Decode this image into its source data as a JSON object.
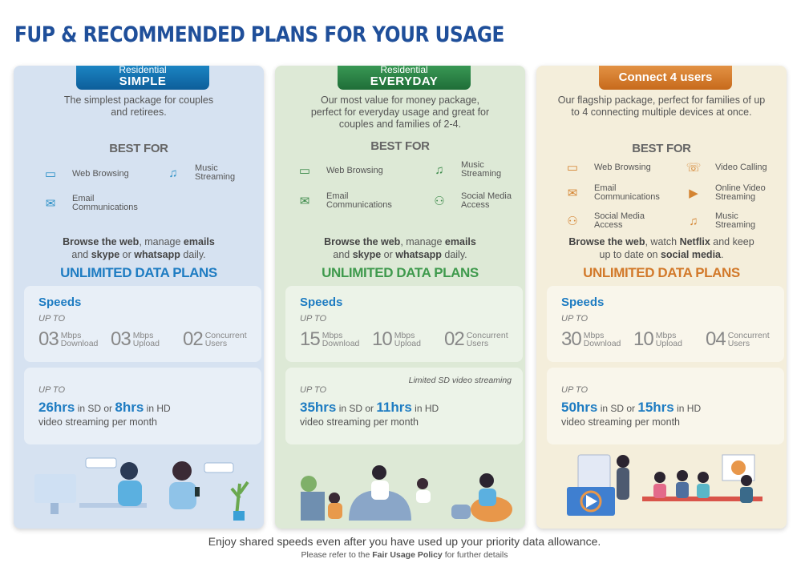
{
  "page": {
    "title": "FUP & RECOMMENDED PLANS FOR YOUR USAGE",
    "footer_main": "Enjoy shared speeds even after you have used up your priority data allowance.",
    "footer_pre": "Please refer to the ",
    "footer_link": "Fair Usage Policy",
    "footer_post": " for further details"
  },
  "colors": {
    "title": "#1f4f9a",
    "simple": "#1e7cc2",
    "everyday": "#3f9a4d",
    "connect4": "#d2792a"
  },
  "plans": [
    {
      "ribbon_small": "Residential",
      "ribbon_large": "SIMPLE",
      "description": "The simplest package for couples and retirees.",
      "best_for": "BEST FOR",
      "uses": [
        {
          "icon": "web-browser-icon",
          "label": "Web Browsing"
        },
        {
          "icon": "music-note-icon",
          "label": "Music Streaming"
        },
        {
          "icon": "email-envelope-icon",
          "label": "Email Communications"
        }
      ],
      "tagline": {
        "a": "Browse the web",
        "b": ", manage ",
        "c": "emails",
        "d": "and ",
        "e": "skype",
        "f": " or ",
        "g": "whatsapp",
        "h": " daily."
      },
      "unlimited": "UNLIMITED DATA PLANS",
      "speeds_label": "Speeds",
      "up_to": "UP TO",
      "specs": [
        {
          "value": "03",
          "unit1": "Mbps",
          "unit2": "Download"
        },
        {
          "value": "03",
          "unit1": "Mbps",
          "unit2": "Upload"
        },
        {
          "value": "02",
          "unit1": "Concurrent",
          "unit2": "Users"
        }
      ],
      "streaming_note": "",
      "stream_up_to": "UP TO",
      "sd_hours": "26hrs",
      "sd_text": " in SD or ",
      "hd_hours": "8hrs",
      "hd_text": " in HD",
      "per_month": "video streaming per month"
    },
    {
      "ribbon_small": "Residential",
      "ribbon_large": "EVERYDAY",
      "description": "Our most value for money package, perfect for everyday usage and great for couples and families of 2-4.",
      "best_for": "BEST FOR",
      "uses": [
        {
          "icon": "web-browser-icon",
          "label": "Web Browsing"
        },
        {
          "icon": "music-note-icon",
          "label": "Music Streaming"
        },
        {
          "icon": "email-envelope-icon",
          "label": "Email Communications"
        },
        {
          "icon": "social-media-icon",
          "label": "Social Media Access"
        }
      ],
      "tagline": {
        "a": "Browse the web",
        "b": ", manage ",
        "c": "emails",
        "d": "and ",
        "e": "skype",
        "f": " or ",
        "g": "whatsapp",
        "h": " daily."
      },
      "unlimited": "UNLIMITED DATA PLANS",
      "speeds_label": "Speeds",
      "up_to": "UP TO",
      "specs": [
        {
          "value": "15",
          "unit1": "Mbps",
          "unit2": "Download"
        },
        {
          "value": "10",
          "unit1": "Mbps",
          "unit2": "Upload"
        },
        {
          "value": "02",
          "unit1": "Concurrent",
          "unit2": "Users"
        }
      ],
      "streaming_note": "Limited SD video streaming",
      "stream_up_to": "UP TO",
      "sd_hours": "35hrs",
      "sd_text": " in SD or ",
      "hd_hours": "11hrs",
      "hd_text": " in HD",
      "per_month": "video streaming per month"
    },
    {
      "ribbon_large": "Connect 4 users",
      "description": "Our flagship package, perfect for families of up to 4 connecting multiple devices at once.",
      "best_for": "BEST FOR",
      "uses": [
        {
          "icon": "web-browser-icon",
          "label": "Web Browsing"
        },
        {
          "icon": "video-call-icon",
          "label": "Video Calling"
        },
        {
          "icon": "email-envelope-icon",
          "label": "Email Communications"
        },
        {
          "icon": "video-play-icon",
          "label": "Online Video Streaming"
        },
        {
          "icon": "social-media-icon",
          "label": "Social Media Access"
        },
        {
          "icon": "music-note-icon",
          "label": "Music Streaming"
        }
      ],
      "tagline3": {
        "a": "Browse the web",
        "b": ", watch ",
        "c": "Netflix",
        "d": " and keep",
        "e": "up to date on ",
        "f": "social media",
        "g": "."
      },
      "unlimited": "UNLIMITED DATA PLANS",
      "speeds_label": "Speeds",
      "up_to": "UP TO",
      "specs": [
        {
          "value": "30",
          "unit1": "Mbps",
          "unit2": "Download"
        },
        {
          "value": "10",
          "unit1": "Mbps",
          "unit2": "Upload"
        },
        {
          "value": "04",
          "unit1": "Concurrent",
          "unit2": "Users"
        }
      ],
      "streaming_note": "",
      "stream_up_to": "UP TO",
      "sd_hours": "50hrs",
      "sd_text": " in SD or ",
      "hd_hours": "15hrs",
      "hd_text": " in HD",
      "per_month": "video streaming per month"
    }
  ]
}
